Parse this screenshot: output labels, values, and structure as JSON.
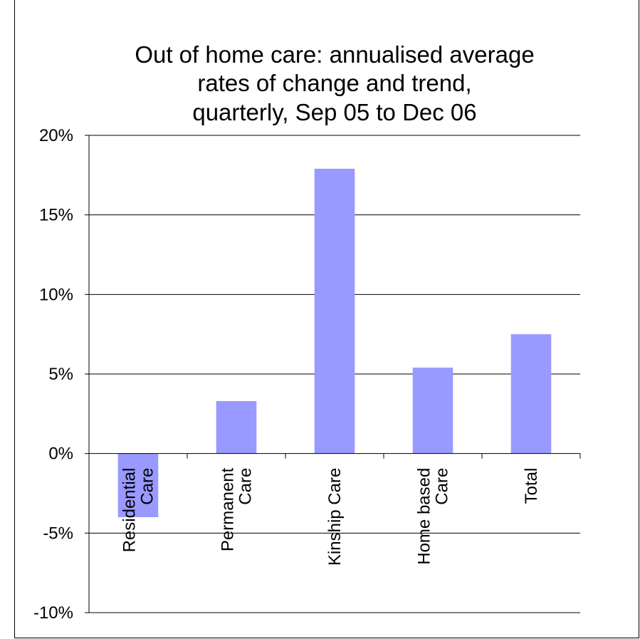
{
  "chart_data": {
    "type": "bar",
    "title": "Out of home care: annualised average rates of change and trend, quarterly, Sep 05 to Dec 06",
    "title_lines": [
      "Out of home care: annualised average",
      "rates of change and trend,",
      "quarterly, Sep 05 to Dec 06"
    ],
    "categories": [
      [
        "Residential",
        "Care"
      ],
      [
        "Permanent",
        "Care"
      ],
      [
        "Kinship Care"
      ],
      [
        "Home based",
        "Care"
      ],
      [
        "Total"
      ]
    ],
    "values": [
      -4.0,
      3.3,
      17.9,
      5.4,
      7.5
    ],
    "ylim": [
      -10,
      20
    ],
    "yticks": [
      -10,
      -5,
      0,
      5,
      10,
      15,
      20
    ],
    "ytick_labels": [
      "-10%",
      "-5%",
      "0%",
      "5%",
      "10%",
      "15%",
      "20%"
    ],
    "grid": true,
    "legend": "none",
    "bar_color": "#9999ff"
  }
}
